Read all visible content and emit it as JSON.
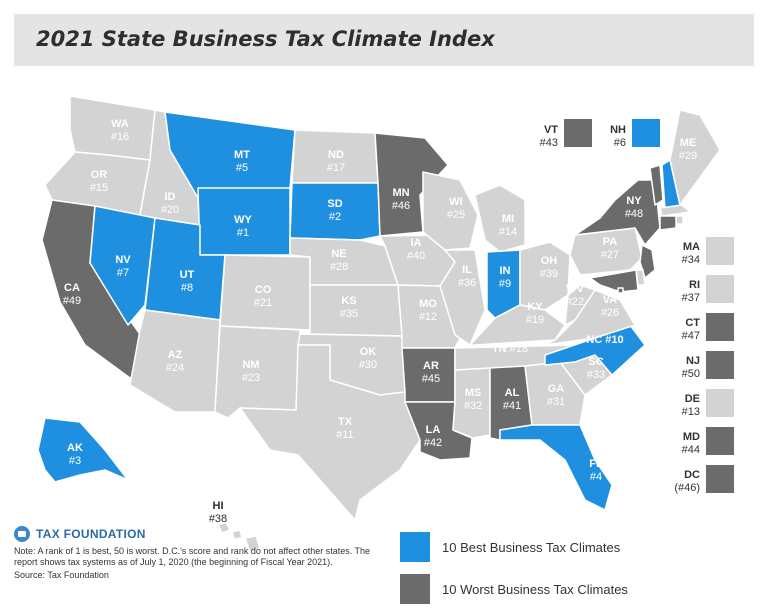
{
  "title": "2021 State Business Tax Climate Index",
  "colors": {
    "best": "#1f8fe0",
    "worst": "#6b6b6b",
    "other": "#d3d3d3",
    "border": "#ffffff"
  },
  "states": {
    "WA": {
      "abbr": "WA",
      "rank": "#16",
      "cat": "other"
    },
    "OR": {
      "abbr": "OR",
      "rank": "#15",
      "cat": "other"
    },
    "CA": {
      "abbr": "CA",
      "rank": "#49",
      "cat": "worst"
    },
    "ID": {
      "abbr": "ID",
      "rank": "#20",
      "cat": "other"
    },
    "NV": {
      "abbr": "NV",
      "rank": "#7",
      "cat": "best"
    },
    "MT": {
      "abbr": "MT",
      "rank": "#5",
      "cat": "best"
    },
    "WY": {
      "abbr": "WY",
      "rank": "#1",
      "cat": "best"
    },
    "UT": {
      "abbr": "UT",
      "rank": "#8",
      "cat": "best"
    },
    "AZ": {
      "abbr": "AZ",
      "rank": "#24",
      "cat": "other"
    },
    "CO": {
      "abbr": "CO",
      "rank": "#21",
      "cat": "other"
    },
    "NM": {
      "abbr": "NM",
      "rank": "#23",
      "cat": "other"
    },
    "ND": {
      "abbr": "ND",
      "rank": "#17",
      "cat": "other"
    },
    "SD": {
      "abbr": "SD",
      "rank": "#2",
      "cat": "best"
    },
    "NE": {
      "abbr": "NE",
      "rank": "#28",
      "cat": "other"
    },
    "KS": {
      "abbr": "KS",
      "rank": "#35",
      "cat": "other"
    },
    "OK": {
      "abbr": "OK",
      "rank": "#30",
      "cat": "other"
    },
    "TX": {
      "abbr": "TX",
      "rank": "#11",
      "cat": "other"
    },
    "MN": {
      "abbr": "MN",
      "rank": "#46",
      "cat": "worst"
    },
    "IA": {
      "abbr": "IA",
      "rank": "#40",
      "cat": "other"
    },
    "MO": {
      "abbr": "MO",
      "rank": "#12",
      "cat": "other"
    },
    "AR": {
      "abbr": "AR",
      "rank": "#45",
      "cat": "worst"
    },
    "LA": {
      "abbr": "LA",
      "rank": "#42",
      "cat": "worst"
    },
    "WI": {
      "abbr": "WI",
      "rank": "#25",
      "cat": "other"
    },
    "IL": {
      "abbr": "IL",
      "rank": "#36",
      "cat": "other"
    },
    "MI": {
      "abbr": "MI",
      "rank": "#14",
      "cat": "other"
    },
    "IN": {
      "abbr": "IN",
      "rank": "#9",
      "cat": "best"
    },
    "OH": {
      "abbr": "OH",
      "rank": "#39",
      "cat": "other"
    },
    "KY": {
      "abbr": "KY",
      "rank": "#19",
      "cat": "other"
    },
    "TN": {
      "abbr": "TN",
      "rank": "#18",
      "cat": "other"
    },
    "MS": {
      "abbr": "MS",
      "rank": "#32",
      "cat": "other"
    },
    "AL": {
      "abbr": "AL",
      "rank": "#41",
      "cat": "worst"
    },
    "GA": {
      "abbr": "GA",
      "rank": "#31",
      "cat": "other"
    },
    "FL": {
      "abbr": "FL",
      "rank": "#4",
      "cat": "best"
    },
    "SC": {
      "abbr": "SC",
      "rank": "#33",
      "cat": "other"
    },
    "NC": {
      "abbr": "NC",
      "rank": "#10",
      "cat": "best"
    },
    "VA": {
      "abbr": "VA",
      "rank": "#26",
      "cat": "other"
    },
    "WV": {
      "abbr": "WV",
      "rank": "#22",
      "cat": "other"
    },
    "PA": {
      "abbr": "PA",
      "rank": "#27",
      "cat": "other"
    },
    "NY": {
      "abbr": "NY",
      "rank": "#48",
      "cat": "worst"
    },
    "VT": {
      "abbr": "VT",
      "rank": "#43",
      "cat": "worst"
    },
    "NH": {
      "abbr": "NH",
      "rank": "#6",
      "cat": "best"
    },
    "ME": {
      "abbr": "ME",
      "rank": "#29",
      "cat": "other"
    },
    "MA": {
      "abbr": "MA",
      "rank": "#34",
      "cat": "other"
    },
    "RI": {
      "abbr": "RI",
      "rank": "#37",
      "cat": "other"
    },
    "CT": {
      "abbr": "CT",
      "rank": "#47",
      "cat": "worst"
    },
    "NJ": {
      "abbr": "NJ",
      "rank": "#50",
      "cat": "worst"
    },
    "DE": {
      "abbr": "DE",
      "rank": "#13",
      "cat": "other"
    },
    "MD": {
      "abbr": "MD",
      "rank": "#44",
      "cat": "worst"
    },
    "DC": {
      "abbr": "DC",
      "rank": "(#46)",
      "cat": "worst"
    },
    "AK": {
      "abbr": "AK",
      "rank": "#3",
      "cat": "best"
    },
    "HI": {
      "abbr": "HI",
      "rank": "#38",
      "cat": "other"
    }
  },
  "footer": {
    "logo": "TAX FOUNDATION",
    "note": "Note: A rank of 1 is best, 50 is worst. D.C.'s score and rank do not affect other states. The report shows tax systems as of July 1, 2020 (the beginning of Fiscal Year 2021).",
    "source": "Source: Tax Foundation"
  },
  "legend": {
    "best_label": "10 Best Business Tax Climates",
    "worst_label": "10 Worst Business Tax Climates"
  }
}
